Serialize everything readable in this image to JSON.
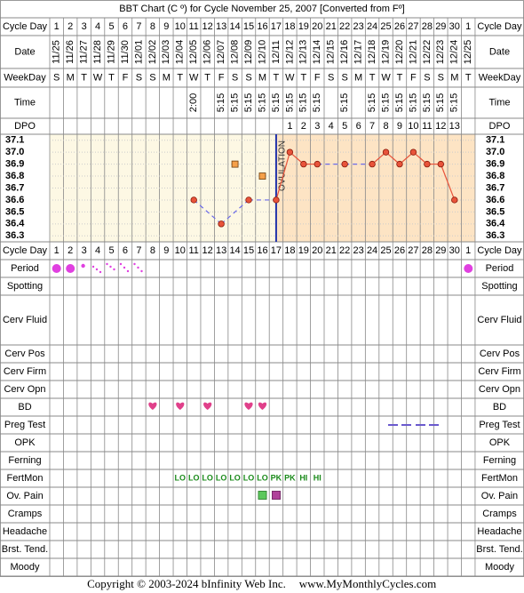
{
  "title": "BBT Chart (C º) for Cycle November 25, 2007  [Converted from Fº]",
  "row_labels": {
    "cycle_day": "Cycle Day",
    "date": "Date",
    "weekday": "WeekDay",
    "time": "Time",
    "dpo": "DPO",
    "period": "Period",
    "spotting": "Spotting",
    "cerv_fluid": "Cerv Fluid",
    "cerv_pos": "Cerv Pos",
    "cerv_firm": "Cerv Firm",
    "cerv_opn": "Cerv Opn",
    "bd": "BD",
    "preg_test": "Preg Test",
    "opk": "OPK",
    "ferning": "Ferning",
    "fertmon": "FertMon",
    "ov_pain": "Ov. Pain",
    "cramps": "Cramps",
    "headache": "Headache",
    "brst_tend": "Brst. Tend.",
    "moody": "Moody"
  },
  "cycle_days": [
    1,
    2,
    3,
    4,
    5,
    6,
    7,
    8,
    9,
    10,
    11,
    12,
    13,
    14,
    15,
    16,
    17,
    18,
    19,
    20,
    21,
    22,
    23,
    24,
    25,
    26,
    27,
    28,
    29,
    30,
    1
  ],
  "dates": [
    "11/25",
    "11/26",
    "11/27",
    "11/28",
    "11/29",
    "11/30",
    "12/01",
    "12/02",
    "12/03",
    "12/04",
    "12/05",
    "12/06",
    "12/07",
    "12/08",
    "12/09",
    "12/10",
    "12/11",
    "12/12",
    "12/13",
    "12/14",
    "12/15",
    "12/16",
    "12/17",
    "12/18",
    "12/19",
    "12/20",
    "12/21",
    "12/22",
    "12/23",
    "12/24",
    "12/25"
  ],
  "weekdays": [
    "S",
    "M",
    "T",
    "W",
    "T",
    "F",
    "S",
    "S",
    "M",
    "T",
    "W",
    "T",
    "F",
    "S",
    "S",
    "M",
    "T",
    "W",
    "T",
    "F",
    "S",
    "S",
    "M",
    "T",
    "W",
    "T",
    "F",
    "S",
    "S",
    "M",
    "T"
  ],
  "times": [
    null,
    null,
    null,
    null,
    null,
    null,
    null,
    null,
    null,
    null,
    "2:00",
    null,
    "5:15",
    "5:15",
    "5:15",
    "5:15",
    "5:15",
    "5:15",
    "5:15",
    "5:15",
    null,
    "5:15",
    null,
    "5:15",
    "5:15",
    "5:15",
    "5:15",
    "5:15",
    "5:15",
    "5:15",
    null
  ],
  "dpo": [
    null,
    null,
    null,
    null,
    null,
    null,
    null,
    null,
    null,
    null,
    null,
    null,
    null,
    null,
    null,
    null,
    null,
    1,
    2,
    3,
    4,
    5,
    6,
    7,
    8,
    9,
    10,
    11,
    12,
    13,
    null
  ],
  "fertmon": [
    null,
    null,
    null,
    null,
    null,
    null,
    null,
    null,
    null,
    "LO",
    "LO",
    "LO",
    "LO",
    "LO",
    "LO",
    "LO",
    "PK",
    "PK",
    "HI",
    "HI",
    null,
    null,
    null,
    null,
    null,
    null,
    null,
    null,
    null,
    null,
    null
  ],
  "chart": {
    "type": "line",
    "ylim": [
      36.25,
      37.15
    ],
    "yticks": [
      37.1,
      {
        "value": 37,
        "label": "37.0"
      },
      36.9,
      36.8,
      36.7,
      36.6,
      36.5,
      36.4,
      36.3
    ],
    "temperatures": [
      null,
      null,
      null,
      null,
      null,
      null,
      null,
      null,
      null,
      null,
      36.6,
      null,
      36.4,
      null,
      36.6,
      null,
      36.6,
      37.0,
      36.9,
      36.9,
      null,
      36.9,
      null,
      36.9,
      37.0,
      36.9,
      37.0,
      36.9,
      36.9,
      36.6,
      null
    ],
    "discarded": [
      null,
      null,
      null,
      null,
      null,
      null,
      null,
      null,
      null,
      null,
      null,
      null,
      null,
      36.9,
      null,
      36.8,
      null,
      null,
      null,
      null,
      null,
      null,
      null,
      null,
      null,
      null,
      null,
      null,
      null,
      null,
      null
    ],
    "color": "#e8533a",
    "discarded_color": "#f5a04a",
    "ovulation_label": "OVULATION"
  },
  "copyright": "Copyright © 2003-2024 bInfinity Web Inc.",
  "website": "www.MyMonthlyCycles.com"
}
